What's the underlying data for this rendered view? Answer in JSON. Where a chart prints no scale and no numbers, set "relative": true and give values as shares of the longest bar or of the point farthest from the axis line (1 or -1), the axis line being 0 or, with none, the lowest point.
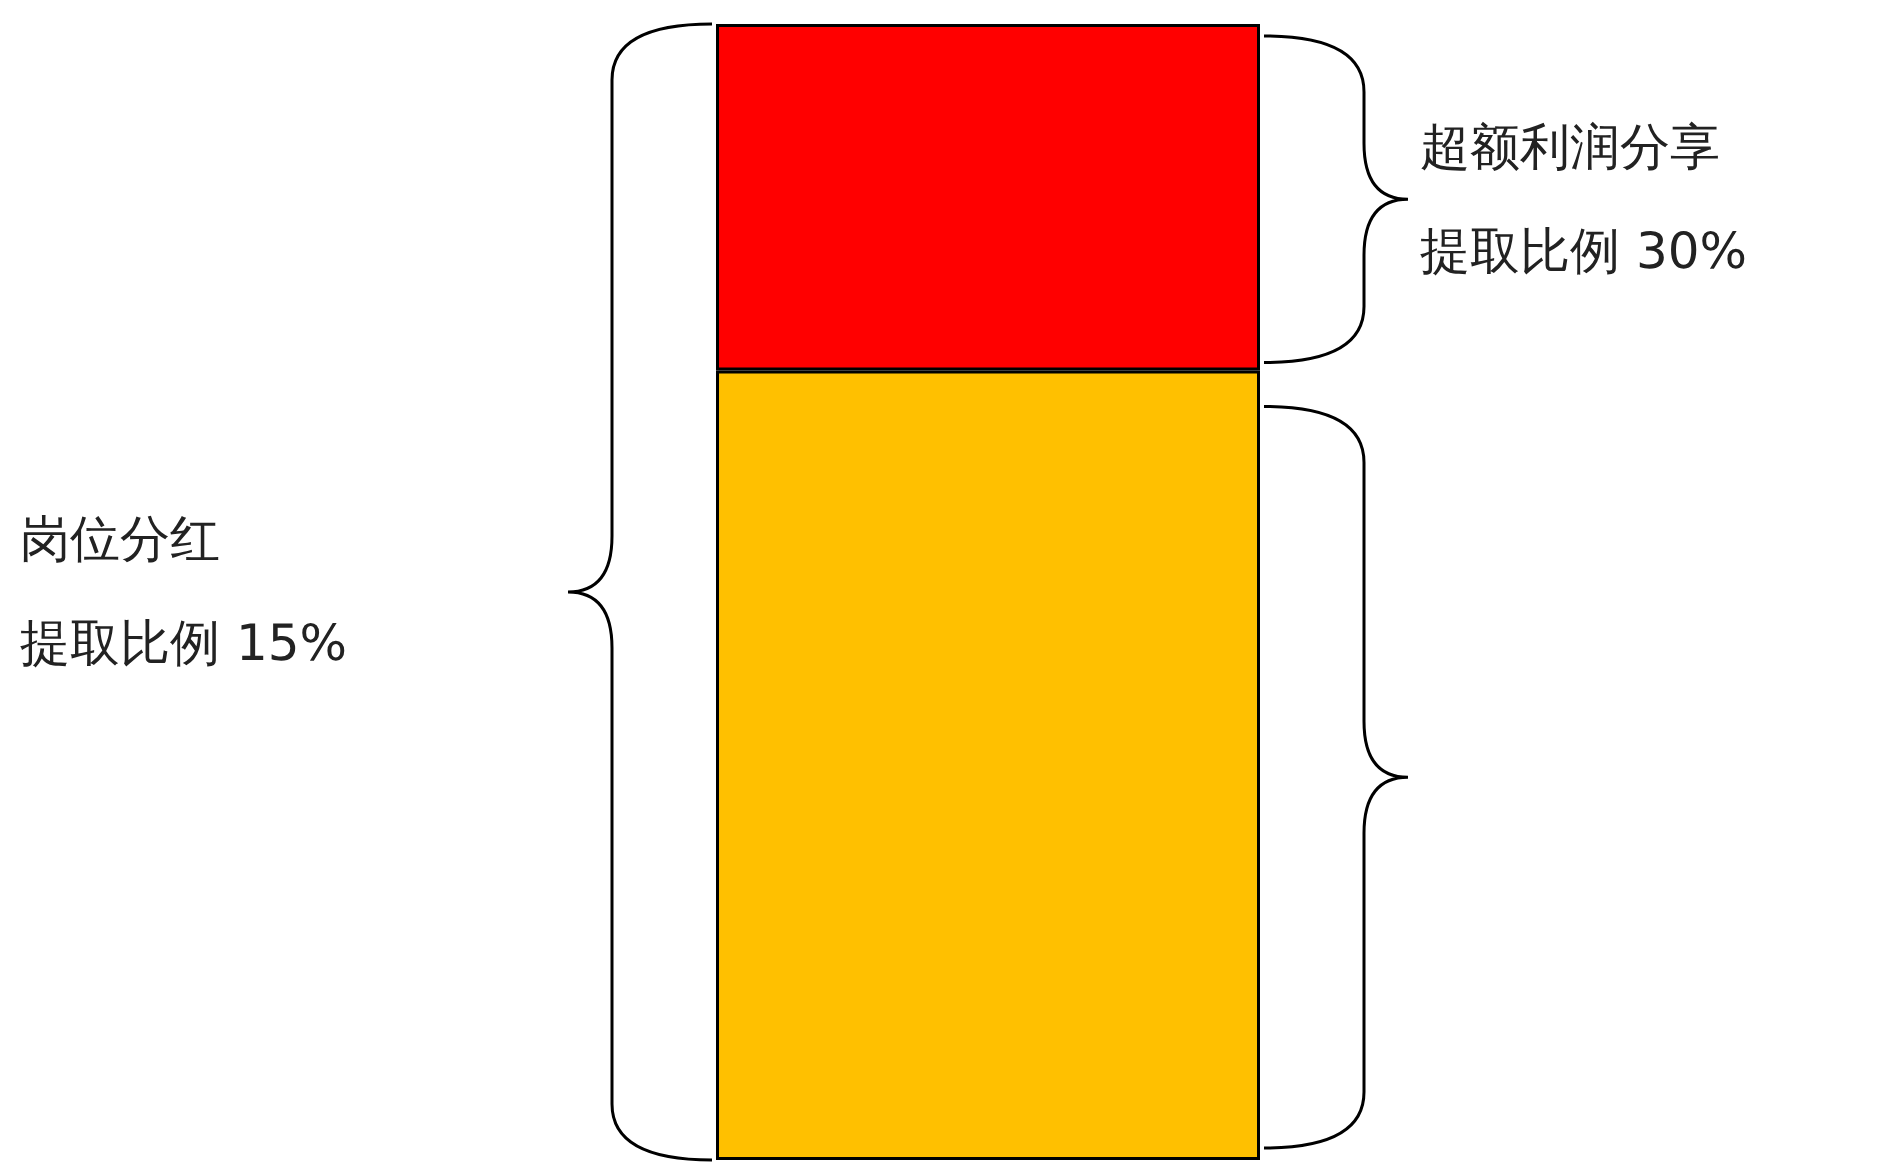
{
  "chart_data": {
    "type": "bar",
    "stacked": true,
    "relative": true,
    "categories": [
      null
    ],
    "series": [
      {
        "color": "#ffc000",
        "values": [
          0.695
        ]
      },
      {
        "color": "#ff0000",
        "values": [
          0.305
        ]
      }
    ],
    "annotations": [
      "超额利润分享",
      "提取比例 30%",
      "岗位分红",
      "提取比例 15%"
    ]
  }
}
